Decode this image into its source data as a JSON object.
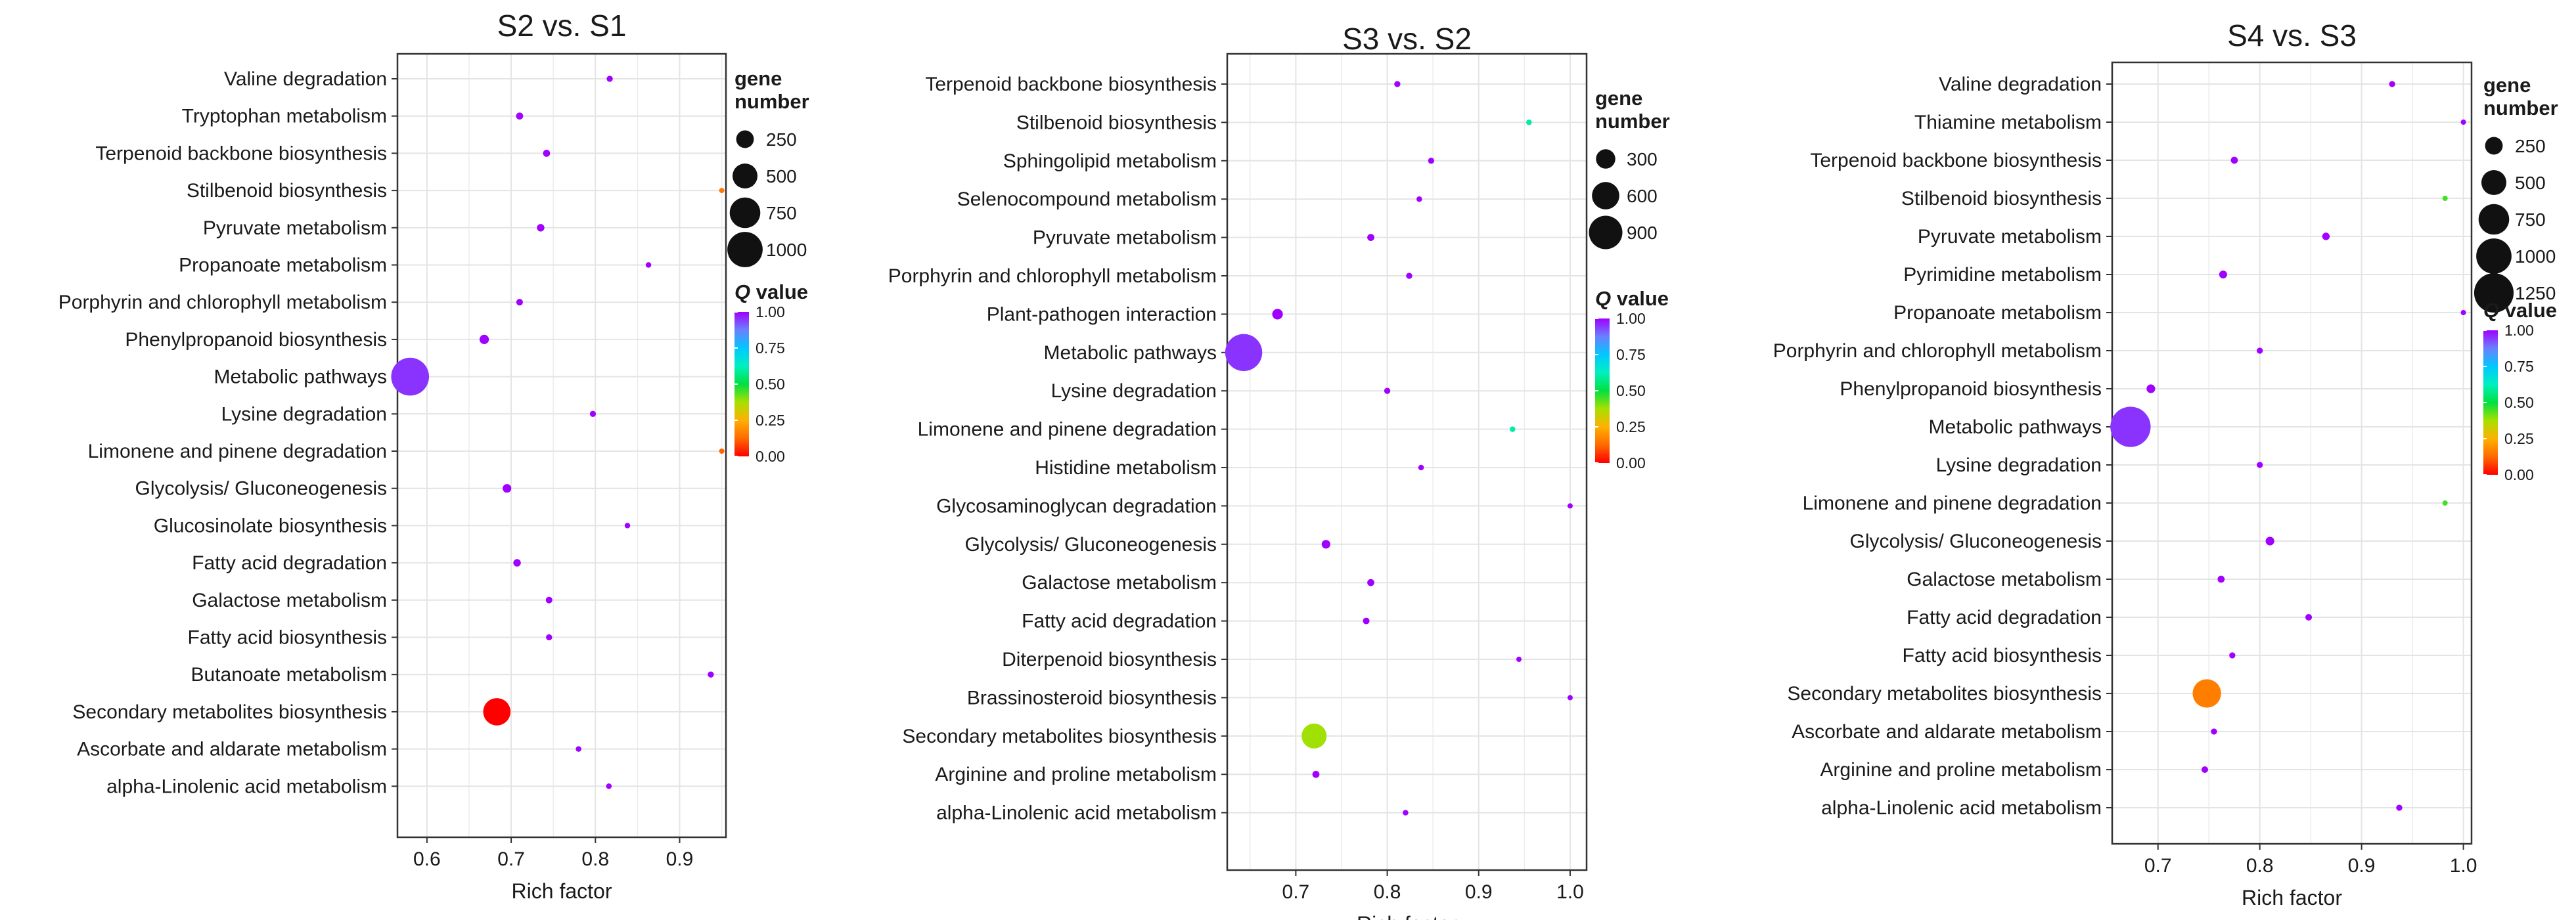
{
  "chart_data": [
    {
      "type": "scatter",
      "title": "S2 vs. S1",
      "xlabel": "Rich factor",
      "ylabel": "",
      "xlim": [
        0.565,
        0.955
      ],
      "xticks": [
        "0.6",
        "0.7",
        "0.8",
        "0.9"
      ],
      "xtick_values": [
        0.6,
        0.7,
        0.8,
        0.9
      ],
      "grid": true,
      "size_legend": {
        "title_line1": "gene",
        "title_line2": "number",
        "labels": [
          "250",
          "500",
          "750",
          "1000"
        ],
        "values": [
          250,
          500,
          750,
          1000
        ]
      },
      "color_legend": {
        "title_italic": "Q",
        "title_rest": " value",
        "labels": [
          "1.00",
          "0.75",
          "0.50",
          "0.25",
          "0.00"
        ],
        "values": [
          1,
          0.75,
          0.5,
          0.25,
          0
        ]
      },
      "categories": [
        "Valine degradation",
        "Tryptophan metabolism",
        "Terpenoid backbone biosynthesis",
        "Stilbenoid biosynthesis",
        "Pyruvate metabolism",
        "Propanoate metabolism",
        "Porphyrin and chlorophyll metabolism",
        "Phenylpropanoid biosynthesis",
        "Metabolic pathways",
        "Lysine degradation",
        "Limonene and pinene degradation",
        "Glycolysis/ Gluconeogenesis",
        "Glucosinolate biosynthesis",
        "Fatty acid degradation",
        "Galactose metabolism",
        "Fatty acid biosynthesis",
        "Butanoate metabolism",
        "Secondary metabolites biosynthesis",
        "Ascorbate and aldarate metabolism",
        "alpha-Linolenic acid metabolism"
      ],
      "rich_factor": [
        0.817,
        0.71,
        0.742,
        0.95,
        0.735,
        0.863,
        0.71,
        0.668,
        0.58,
        0.797,
        0.95,
        0.695,
        0.838,
        0.707,
        0.745,
        0.745,
        0.937,
        0.683,
        0.78,
        0.816
      ],
      "gene_number": [
        30,
        40,
        40,
        20,
        45,
        25,
        35,
        70,
        1150,
        30,
        15,
        60,
        25,
        45,
        35,
        30,
        30,
        600,
        25,
        25
      ],
      "q_value": [
        1.0,
        1.0,
        1.0,
        0.15,
        1.0,
        1.0,
        1.0,
        1.0,
        0.95,
        1.0,
        0.12,
        1.0,
        1.0,
        1.0,
        1.0,
        1.0,
        1.0,
        0.0,
        1.0,
        1.0
      ]
    },
    {
      "type": "scatter",
      "title": "S3 vs. S2",
      "xlabel": "Rich factor",
      "ylabel": "",
      "xlim": [
        0.625,
        1.018
      ],
      "xticks": [
        "0.7",
        "0.8",
        "0.9",
        "1.0"
      ],
      "xtick_values": [
        0.7,
        0.8,
        0.9,
        1.0
      ],
      "grid": true,
      "size_legend": {
        "title_line1": "gene",
        "title_line2": "number",
        "labels": [
          "300",
          "600",
          "900"
        ],
        "values": [
          300,
          600,
          900
        ]
      },
      "color_legend": {
        "title_italic": "Q",
        "title_rest": " value",
        "labels": [
          "1.00",
          "0.75",
          "0.50",
          "0.25",
          "0.00"
        ],
        "values": [
          1,
          0.75,
          0.5,
          0.25,
          0
        ]
      },
      "categories": [
        "Terpenoid backbone biosynthesis",
        "Stilbenoid biosynthesis",
        "Sphingolipid metabolism",
        "Selenocompound metabolism",
        "Pyruvate metabolism",
        "Porphyrin and chlorophyll metabolism",
        "Plant-pathogen interaction",
        "Metabolic pathways",
        "Lysine degradation",
        "Limonene and pinene degradation",
        "Histidine metabolism",
        "Glycosaminoglycan degradation",
        "Glycolysis/ Gluconeogenesis",
        "Galactose metabolism",
        "Fatty acid degradation",
        "Diterpenoid biosynthesis",
        "Brassinosteroid biosynthesis",
        "Secondary metabolites biosynthesis",
        "Arginine and proline metabolism",
        "alpha-Linolenic acid metabolism"
      ],
      "rich_factor": [
        0.811,
        0.955,
        0.848,
        0.835,
        0.782,
        0.824,
        0.68,
        0.643,
        0.8,
        0.937,
        0.837,
        1.0,
        0.733,
        0.782,
        0.777,
        0.944,
        1.0,
        0.72,
        0.722,
        0.82
      ],
      "gene_number": [
        30,
        25,
        30,
        25,
        40,
        30,
        90,
        1100,
        30,
        25,
        25,
        15,
        60,
        40,
        35,
        20,
        15,
        500,
        40,
        25
      ],
      "q_value": [
        1.0,
        0.6,
        1.0,
        1.0,
        1.0,
        1.0,
        1.0,
        0.95,
        1.0,
        0.6,
        1.0,
        1.0,
        1.0,
        1.0,
        1.0,
        1.0,
        1.0,
        0.38,
        1.0,
        1.0
      ]
    },
    {
      "type": "scatter",
      "title": "S4 vs. S3",
      "xlabel": "Rich factor",
      "ylabel": "",
      "xlim": [
        0.655,
        1.008
      ],
      "xticks": [
        "0.7",
        "0.8",
        "0.9",
        "1.0"
      ],
      "xtick_values": [
        0.7,
        0.8,
        0.9,
        1.0
      ],
      "grid": true,
      "size_legend": {
        "title_line1": "gene",
        "title_line2": "number",
        "labels": [
          "250",
          "500",
          "750",
          "1000",
          "1250"
        ],
        "values": [
          250,
          500,
          750,
          1000,
          1250
        ]
      },
      "color_legend": {
        "title_italic": "Q",
        "title_rest": " value",
        "labels": [
          "1.00",
          "0.75",
          "0.50",
          "0.25",
          "0.00"
        ],
        "values": [
          1,
          0.75,
          0.5,
          0.25,
          0
        ]
      },
      "categories": [
        "Valine degradation",
        "Thiamine metabolism",
        "Terpenoid backbone biosynthesis",
        "Stilbenoid biosynthesis",
        "Pyruvate metabolism",
        "Pyrimidine metabolism",
        "Propanoate metabolism",
        "Porphyrin and chlorophyll metabolism",
        "Phenylpropanoid biosynthesis",
        "Metabolic pathways",
        "Lysine degradation",
        "Limonene and pinene degradation",
        "Glycolysis/ Gluconeogenesis",
        "Galactose metabolism",
        "Fatty acid degradation",
        "Fatty acid biosynthesis",
        "Secondary metabolites biosynthesis",
        "Ascorbate and aldarate metabolism",
        "Arginine and proline metabolism",
        "alpha-Linolenic acid metabolism"
      ],
      "rich_factor": [
        0.93,
        1.0,
        0.775,
        0.982,
        0.865,
        0.764,
        1.0,
        0.8,
        0.693,
        0.673,
        0.8,
        0.982,
        0.81,
        0.762,
        0.848,
        0.773,
        0.748,
        0.755,
        0.746,
        0.937
      ],
      "gene_number": [
        30,
        20,
        40,
        15,
        45,
        50,
        20,
        30,
        60,
        1300,
        30,
        15,
        60,
        40,
        35,
        30,
        650,
        30,
        35,
        30
      ],
      "q_value": [
        1.0,
        1.0,
        1.0,
        0.45,
        1.0,
        1.0,
        1.0,
        1.0,
        1.0,
        0.95,
        1.0,
        0.45,
        1.0,
        1.0,
        1.0,
        1.0,
        0.16,
        1.0,
        1.0,
        1.0
      ]
    }
  ]
}
